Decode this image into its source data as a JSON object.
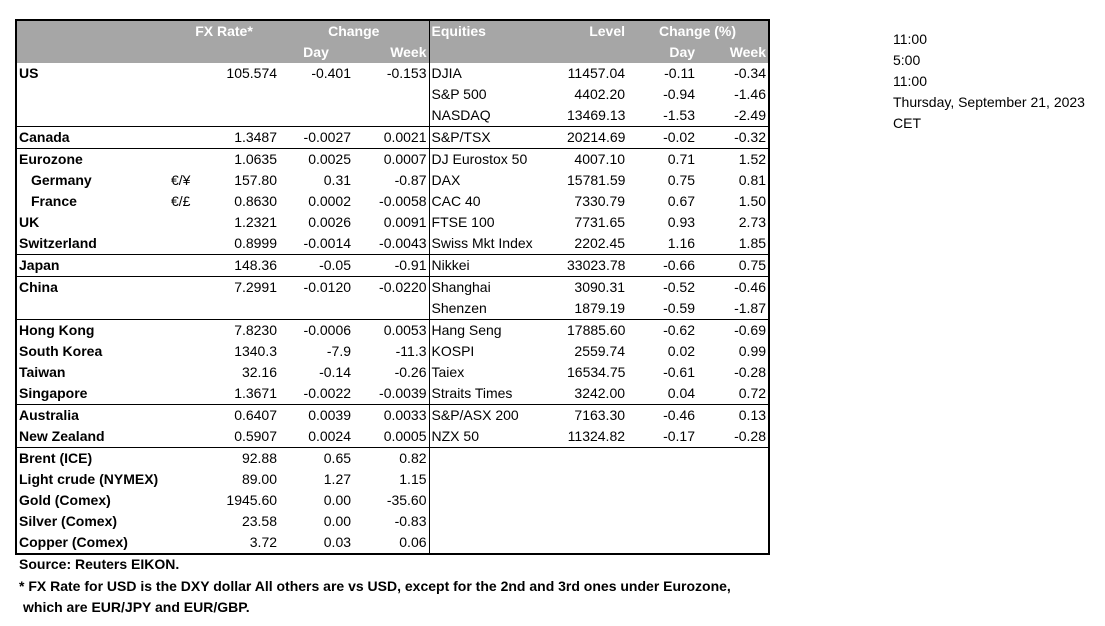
{
  "header": {
    "fx_rate": "FX Rate*",
    "change": "Change",
    "day": "Day",
    "week": "Week",
    "equities": "Equities",
    "level": "Level",
    "change_pct": "Change (%)",
    "eq_day": "Day",
    "eq_week": "Week"
  },
  "rows": [
    {
      "country": "US",
      "sym": "",
      "fx": "105.574",
      "day": "-0.401",
      "week": "-0.153",
      "eq": "DJIA",
      "level": "11457.04",
      "eday": "-0.11",
      "eweek": "-0.34"
    },
    {
      "country": "",
      "sym": "",
      "fx": "",
      "day": "",
      "week": "",
      "eq": "S&P 500",
      "level": "4402.20",
      "eday": "-0.94",
      "eweek": "-1.46"
    },
    {
      "country": "",
      "sym": "",
      "fx": "",
      "day": "",
      "week": "",
      "eq": "NASDAQ",
      "level": "13469.13",
      "eday": "-1.53",
      "eweek": "-2.49"
    },
    {
      "country": "Canada",
      "sym": "",
      "fx": "1.3487",
      "day": "-0.0027",
      "week": "0.0021",
      "eq": "S&P/TSX",
      "level": "20214.69",
      "eday": "-0.02",
      "eweek": "-0.32"
    },
    {
      "country": "Eurozone",
      "sym": "",
      "fx": "1.0635",
      "day": "0.0025",
      "week": "0.0007",
      "eq": "DJ Eurostox 50",
      "level": "4007.10",
      "eday": "0.71",
      "eweek": "1.52"
    },
    {
      "country": "Germany",
      "sym": "€/¥",
      "fx": "157.80",
      "day": "0.31",
      "week": "-0.87",
      "eq": "DAX",
      "level": "15781.59",
      "eday": "0.75",
      "eweek": "0.81"
    },
    {
      "country": "France",
      "sym": "€/£",
      "fx": "0.8630",
      "day": "0.0002",
      "week": "-0.0058",
      "eq": "CAC 40",
      "level": "7330.79",
      "eday": "0.67",
      "eweek": "1.50"
    },
    {
      "country": "UK",
      "sym": "",
      "fx": "1.2321",
      "day": "0.0026",
      "week": "0.0091",
      "eq": "FTSE 100",
      "level": "7731.65",
      "eday": "0.93",
      "eweek": "2.73"
    },
    {
      "country": "Switzerland",
      "sym": "",
      "fx": "0.8999",
      "day": "-0.0014",
      "week": "-0.0043",
      "eq": "Swiss Mkt Index",
      "level": "2202.45",
      "eday": "1.16",
      "eweek": "1.85"
    },
    {
      "country": "Japan",
      "sym": "",
      "fx": "148.36",
      "day": "-0.05",
      "week": "-0.91",
      "eq": "Nikkei",
      "level": "33023.78",
      "eday": "-0.66",
      "eweek": "0.75"
    },
    {
      "country": "China",
      "sym": "",
      "fx": "7.2991",
      "day": "-0.0120",
      "week": "-0.0220",
      "eq": "Shanghai",
      "level": "3090.31",
      "eday": "-0.52",
      "eweek": "-0.46"
    },
    {
      "country": "",
      "sym": "",
      "fx": "",
      "day": "",
      "week": "",
      "eq": "Shenzen",
      "level": "1879.19",
      "eday": "-0.59",
      "eweek": "-1.87"
    },
    {
      "country": "Hong Kong",
      "sym": "",
      "fx": "7.8230",
      "day": "-0.0006",
      "week": "0.0053",
      "eq": "Hang Seng",
      "level": "17885.60",
      "eday": "-0.62",
      "eweek": "-0.69"
    },
    {
      "country": "South Korea",
      "sym": "",
      "fx": "1340.3",
      "day": "-7.9",
      "week": "-11.3",
      "eq": "KOSPI",
      "level": "2559.74",
      "eday": "0.02",
      "eweek": "0.99"
    },
    {
      "country": "Taiwan",
      "sym": "",
      "fx": "32.16",
      "day": "-0.14",
      "week": "-0.26",
      "eq": "Taiex",
      "level": "16534.75",
      "eday": "-0.61",
      "eweek": "-0.28"
    },
    {
      "country": "Singapore",
      "sym": "",
      "fx": "1.3671",
      "day": "-0.0022",
      "week": "-0.0039",
      "eq": "Straits Times",
      "level": "3242.00",
      "eday": "0.04",
      "eweek": "0.72"
    },
    {
      "country": "Australia",
      "sym": "",
      "fx": "0.6407",
      "day": "0.0039",
      "week": "0.0033",
      "eq": "S&P/ASX  200",
      "level": "7163.30",
      "eday": "-0.46",
      "eweek": "0.13"
    },
    {
      "country": "New Zealand",
      "sym": "",
      "fx": "0.5907",
      "day": "0.0024",
      "week": "0.0005",
      "eq": "NZX 50",
      "level": "11324.82",
      "eday": "-0.17",
      "eweek": "-0.28"
    },
    {
      "country": "Brent (ICE)",
      "sym": "",
      "fx": "92.88",
      "day": "0.65",
      "week": "0.82",
      "eq": "",
      "level": "",
      "eday": "",
      "eweek": ""
    },
    {
      "country": "Light crude (NYMEX)",
      "sym": "",
      "fx": "89.00",
      "day": "1.27",
      "week": "1.15",
      "eq": "",
      "level": "",
      "eday": "",
      "eweek": ""
    },
    {
      "country": "Gold (Comex)",
      "sym": "",
      "fx": "1945.60",
      "day": "0.00",
      "week": "-35.60",
      "eq": "",
      "level": "",
      "eday": "",
      "eweek": ""
    },
    {
      "country": "Silver (Comex)",
      "sym": "",
      "fx": "23.58",
      "day": "0.00",
      "week": "-0.83",
      "eq": "",
      "level": "",
      "eday": "",
      "eweek": ""
    },
    {
      "country": "Copper (Comex)",
      "sym": "",
      "fx": "3.72",
      "day": "0.03",
      "week": "0.06",
      "eq": "",
      "level": "",
      "eday": "",
      "eweek": ""
    }
  ],
  "footer": {
    "source": "Source:  Reuters EIKON.",
    "note1": "* FX Rate for USD is the DXY dollar  All others are vs USD, except for the 2nd and 3rd ones under Eurozone,",
    "note2": "which are EUR/JPY and EUR/GBP."
  },
  "side": {
    "t1": "11:00",
    "t2": "5:00",
    "t3": "11:00",
    "date": "Thursday, September 21, 2023",
    "tz": "CET"
  }
}
